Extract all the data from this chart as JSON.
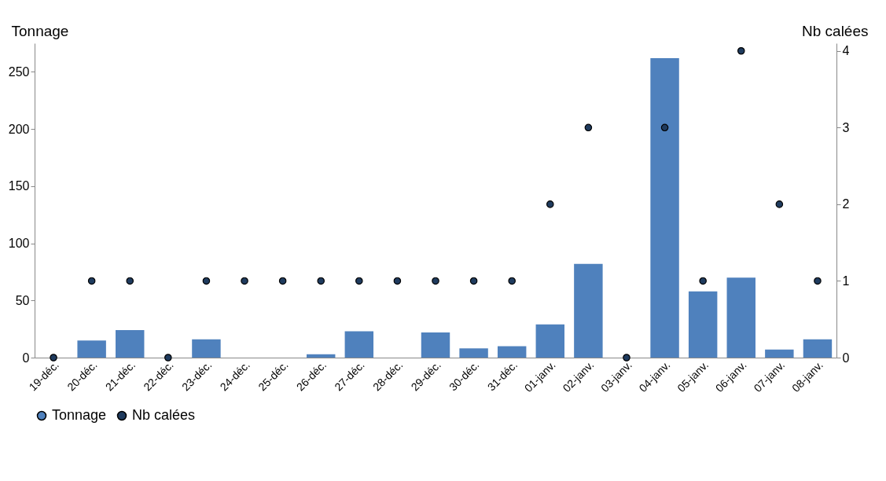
{
  "chart_data": {
    "type": "bar",
    "ylabel": "Tonnage",
    "y2label": "Nb calées",
    "categories": [
      "19-déc.",
      "20-déc.",
      "21-déc.",
      "22-déc.",
      "23-déc.",
      "24-déc.",
      "25-déc.",
      "26-déc.",
      "27-déc.",
      "28-déc.",
      "29-déc.",
      "30-déc.",
      "31-déc.",
      "01-janv.",
      "02-janv.",
      "03-janv.",
      "04-janv.",
      "05-janv.",
      "06-janv.",
      "07-janv.",
      "08-janv."
    ],
    "series": [
      {
        "name": "Tonnage",
        "type": "bar",
        "color": "#4f81bd",
        "values": [
          0,
          15,
          24,
          0,
          16,
          0,
          0,
          3,
          23,
          0,
          22,
          8,
          10,
          29,
          82,
          0,
          262,
          58,
          70,
          7,
          16
        ]
      },
      {
        "name": "Nb calées",
        "type": "scatter",
        "axis": "y2",
        "color": "#1f3b5e",
        "values": [
          0,
          1,
          1,
          0,
          1,
          1,
          1,
          1,
          1,
          1,
          1,
          1,
          1,
          2,
          3,
          0,
          3,
          1,
          4,
          2,
          1
        ]
      }
    ],
    "ylim": [
      0,
      275
    ],
    "yticks": [
      0,
      50,
      100,
      150,
      200,
      250
    ],
    "y2lim": [
      0,
      4.1
    ],
    "y2ticks": [
      0,
      1,
      2,
      3,
      4
    ],
    "marker": "circle",
    "legend": "bottom"
  }
}
